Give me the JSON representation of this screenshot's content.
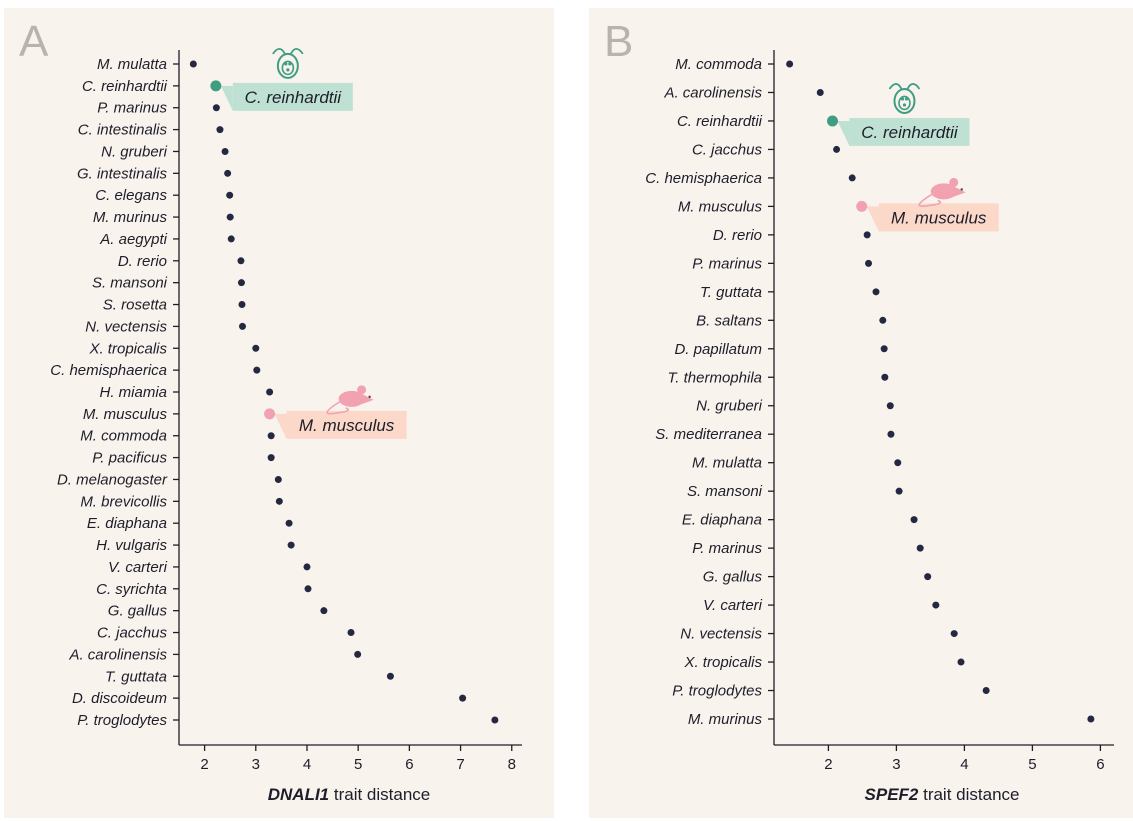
{
  "colors": {
    "background": "#f9f3ee",
    "point": "#252841",
    "chlamy_point": "#3f9e82",
    "chlamy_box": "#bfe1d4",
    "mouse_point": "#f2a1b0",
    "mouse_box": "#fbd8c8",
    "panel_letter": "#b7b3ad"
  },
  "icons": [
    "chlamydomonas-icon",
    "mouse-icon"
  ],
  "chart_data": [
    {
      "type": "scatter",
      "panel": "A",
      "xlabel_gene": "DNALI1",
      "xlabel_rest": " trait distance",
      "xlim": [
        1.5,
        8.2
      ],
      "xticks": [
        2,
        3,
        4,
        5,
        6,
        7,
        8
      ],
      "categories": [
        "M. mulatta",
        "C. reinhardtii",
        "P. marinus",
        "C. intestinalis",
        "N. gruberi",
        "G. intestinalis",
        "C. elegans",
        "M. murinus",
        "A. aegypti",
        "D. rerio",
        "S. mansoni",
        "S. rosetta",
        "N. vectensis",
        "X. tropicalis",
        "C. hemisphaerica",
        "H. miamia",
        "M. musculus",
        "M. commoda",
        "P. pacificus",
        "D. melanogaster",
        "M. brevicollis",
        "E. diaphana",
        "H. vulgaris",
        "V. carteri",
        "C. syrichta",
        "G. gallus",
        "C. jacchus",
        "A. carolinensis",
        "T. guttata",
        "D. discoideum",
        "P. troglodytes"
      ],
      "values": [
        1.78,
        2.22,
        2.23,
        2.3,
        2.4,
        2.45,
        2.49,
        2.5,
        2.52,
        2.71,
        2.72,
        2.73,
        2.74,
        3.0,
        3.02,
        3.27,
        3.27,
        3.3,
        3.3,
        3.44,
        3.46,
        3.65,
        3.69,
        4.0,
        4.02,
        4.33,
        4.86,
        4.99,
        5.63,
        7.04,
        7.67
      ],
      "highlights": [
        {
          "name": "C. reinhardtii",
          "kind": "chlamy"
        },
        {
          "name": "M. musculus",
          "kind": "mouse"
        }
      ]
    },
    {
      "type": "scatter",
      "panel": "B",
      "xlabel_gene": "SPEF2",
      "xlabel_rest": " trait distance",
      "xlim": [
        1.2,
        6.2
      ],
      "xticks": [
        2,
        3,
        4,
        5,
        6
      ],
      "categories": [
        "M. commoda",
        "A. carolinensis",
        "C. reinhardtii",
        "C. jacchus",
        "C. hemisphaerica",
        "M. musculus",
        "D. rerio",
        "P. marinus",
        "T. guttata",
        "B. saltans",
        "D. papillatum",
        "T. thermophila",
        "N. gruberi",
        "S. mediterranea",
        "M. mulatta",
        "S. mansoni",
        "E. diaphana",
        "P. marinus",
        "G. gallus",
        "V. carteri",
        "N. vectensis",
        "X. tropicalis",
        "P. troglodytes",
        "M. murinus"
      ],
      "values": [
        1.43,
        1.88,
        2.06,
        2.12,
        2.35,
        2.49,
        2.57,
        2.59,
        2.7,
        2.8,
        2.82,
        2.83,
        2.91,
        2.92,
        3.02,
        3.04,
        3.26,
        3.35,
        3.46,
        3.58,
        3.85,
        3.95,
        4.32,
        5.86
      ],
      "highlights": [
        {
          "name": "C. reinhardtii",
          "kind": "chlamy"
        },
        {
          "name": "M. musculus",
          "kind": "mouse"
        }
      ]
    }
  ]
}
